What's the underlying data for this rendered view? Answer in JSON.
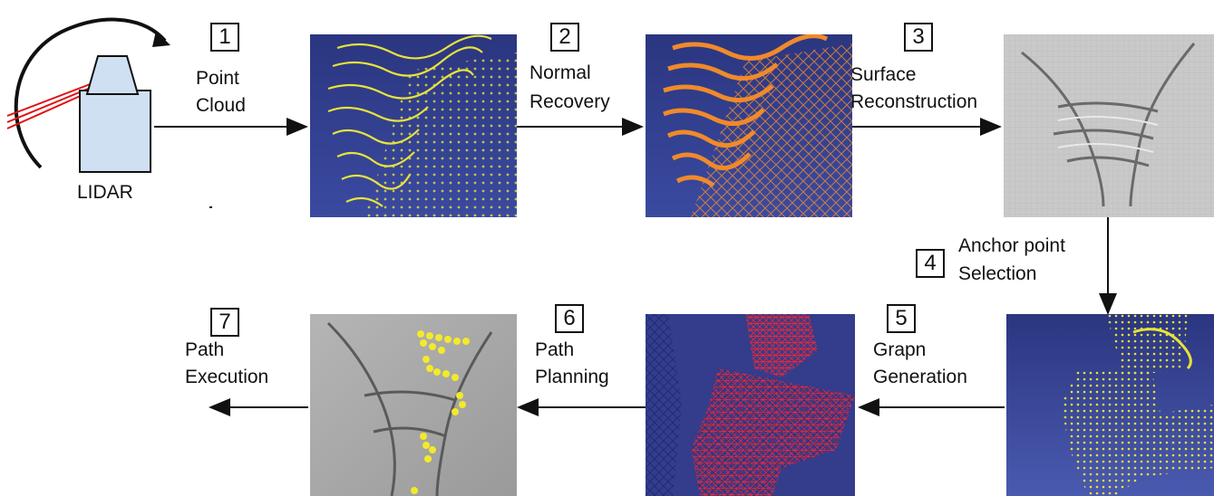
{
  "lidar": {
    "label": "LIDAR"
  },
  "steps": [
    {
      "num": "1",
      "line1": "Point",
      "line2": "Cloud"
    },
    {
      "num": "2",
      "line1": "Normal",
      "line2": "Recovery"
    },
    {
      "num": "3",
      "line1": "Surface",
      "line2": "Reconstruction"
    },
    {
      "num": "4",
      "line1": "Anchor point",
      "line2": "Selection"
    },
    {
      "num": "5",
      "line1": "Grapn",
      "line2": "Generation"
    },
    {
      "num": "6",
      "line1": "Path",
      "line2": "Planning"
    },
    {
      "num": "7",
      "line1": "Path",
      "line2": "Execution"
    }
  ],
  "colors": {
    "panel_blue": "#2f3a86",
    "point_yellow": "#e8e23a",
    "mesh_orange": "#f08a2a",
    "mesh_red": "#e0283a",
    "surface_gray": "#a9a9a9",
    "laser_red": "#e01010",
    "lidar_fill": "#cfe0f2"
  }
}
